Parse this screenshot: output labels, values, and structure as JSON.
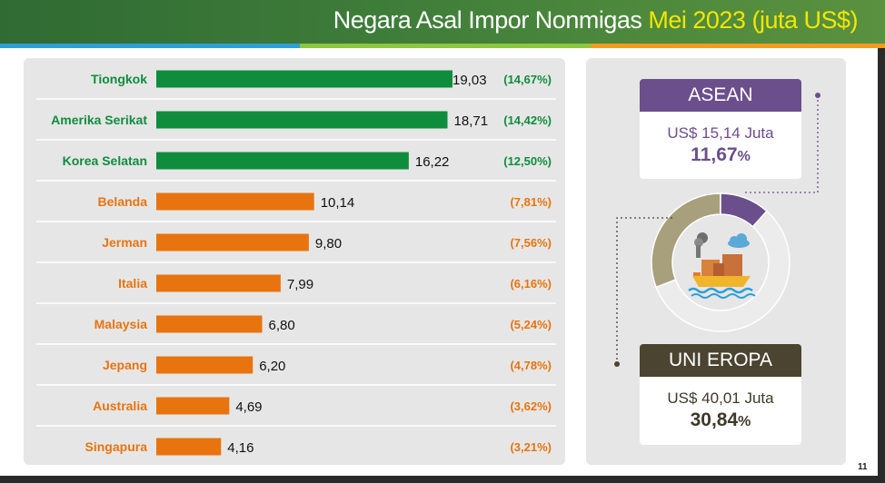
{
  "header": {
    "title_main": "Negara Asal Impor Nonmigas ",
    "title_highlight": "Mei 2023 (juta US$)"
  },
  "colors": {
    "green_bar": "#0f8d3c",
    "orange_bar": "#e8740f",
    "asean": "#6b4f8c",
    "uni_eropa": "#4a4430",
    "donut_light": "#ececec",
    "donut_olive": "#a8a07c"
  },
  "chart_data": {
    "type": "bar",
    "orientation": "horizontal",
    "categories": [
      "Tiongkok",
      "Amerika Serikat",
      "Korea Selatan",
      "Belanda",
      "Jerman",
      "Italia",
      "Malaysia",
      "Jepang",
      "Australia",
      "Singapura"
    ],
    "values": [
      19.03,
      18.71,
      16.22,
      10.14,
      9.8,
      7.99,
      6.8,
      6.2,
      4.69,
      4.16
    ],
    "value_labels": [
      "19,03",
      "18,71",
      "16,22",
      "10,14",
      "9,80",
      "7,99",
      "6,80",
      "6,20",
      "4,69",
      "4,16"
    ],
    "share_labels": [
      "(14,67%)",
      "(14,42%)",
      "(12,50%)",
      "(7,81%)",
      "(7,56%)",
      "(6,16%)",
      "(5,24%)",
      "(4,78%)",
      "(3,62%)",
      "(3,21%)"
    ],
    "bar_color_group": [
      "green",
      "green",
      "green",
      "orange",
      "orange",
      "orange",
      "orange",
      "orange",
      "orange",
      "orange"
    ],
    "xlim": [
      0,
      19.03
    ]
  },
  "donut": {
    "type": "pie",
    "segments": [
      {
        "name": "ASEAN",
        "share": 11.67
      },
      {
        "name": "UNI EROPA",
        "share": 30.84
      },
      {
        "name": "other",
        "share": 57.49
      }
    ]
  },
  "asean": {
    "label": "ASEAN",
    "value": "US$ 15,14 Juta",
    "pct": "11,67",
    "pct_sign": "%"
  },
  "uni_eropa": {
    "label": "UNI EROPA",
    "value": "US$ 40,01 Juta",
    "pct": "30,84",
    "pct_sign": "%"
  },
  "page_number": "11"
}
